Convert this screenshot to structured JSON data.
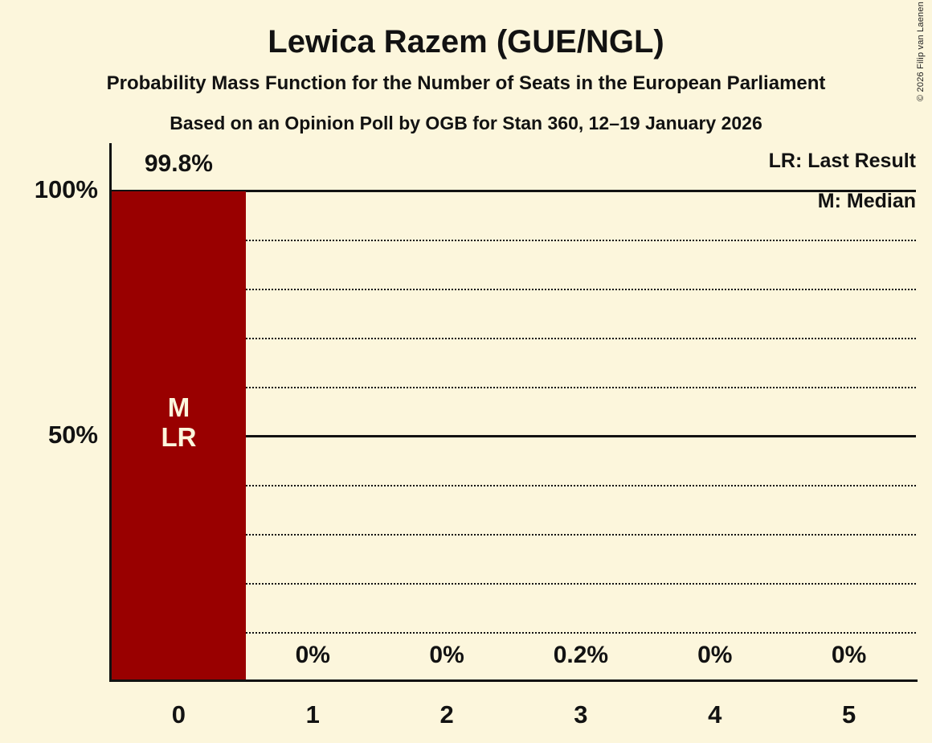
{
  "header": {
    "title": "Lewica Razem (GUE/NGL)",
    "subtitle1": "Probability Mass Function for the Number of Seats in the European Parliament",
    "subtitle2": "Based on an Opinion Poll by OGB for Stan 360, 12–19 January 2026",
    "copyright": "© 2026 Filip van Laenen"
  },
  "legend": {
    "lr": "LR: Last Result",
    "m": "M: Median"
  },
  "colors": {
    "background": "#FCF6DC",
    "bar": "#990000",
    "text": "#121212",
    "bar_inner_label": "#FCF6DC"
  },
  "chart_data": {
    "type": "bar",
    "title": "Lewica Razem (GUE/NGL)",
    "xlabel": "",
    "ylabel": "",
    "categories": [
      "0",
      "1",
      "2",
      "3",
      "4",
      "5"
    ],
    "values": [
      99.8,
      0,
      0,
      0.2,
      0,
      0
    ],
    "value_labels": [
      "99.8%",
      "0%",
      "0%",
      "0.2%",
      "0%",
      "0%"
    ],
    "ylim": [
      0,
      100
    ],
    "ytick_values": [
      100,
      50
    ],
    "ytick_labels": [
      "100%",
      "50%"
    ],
    "dotted_gridlines_pct": [
      10,
      20,
      30,
      40,
      60,
      70,
      80,
      90
    ],
    "solid_gridlines_pct": [
      50,
      100
    ],
    "grid_on": true,
    "legend_position": "top-right",
    "median_seat": "0",
    "last_result_seat": "0",
    "bar_annotations": [
      "M",
      "LR"
    ]
  }
}
